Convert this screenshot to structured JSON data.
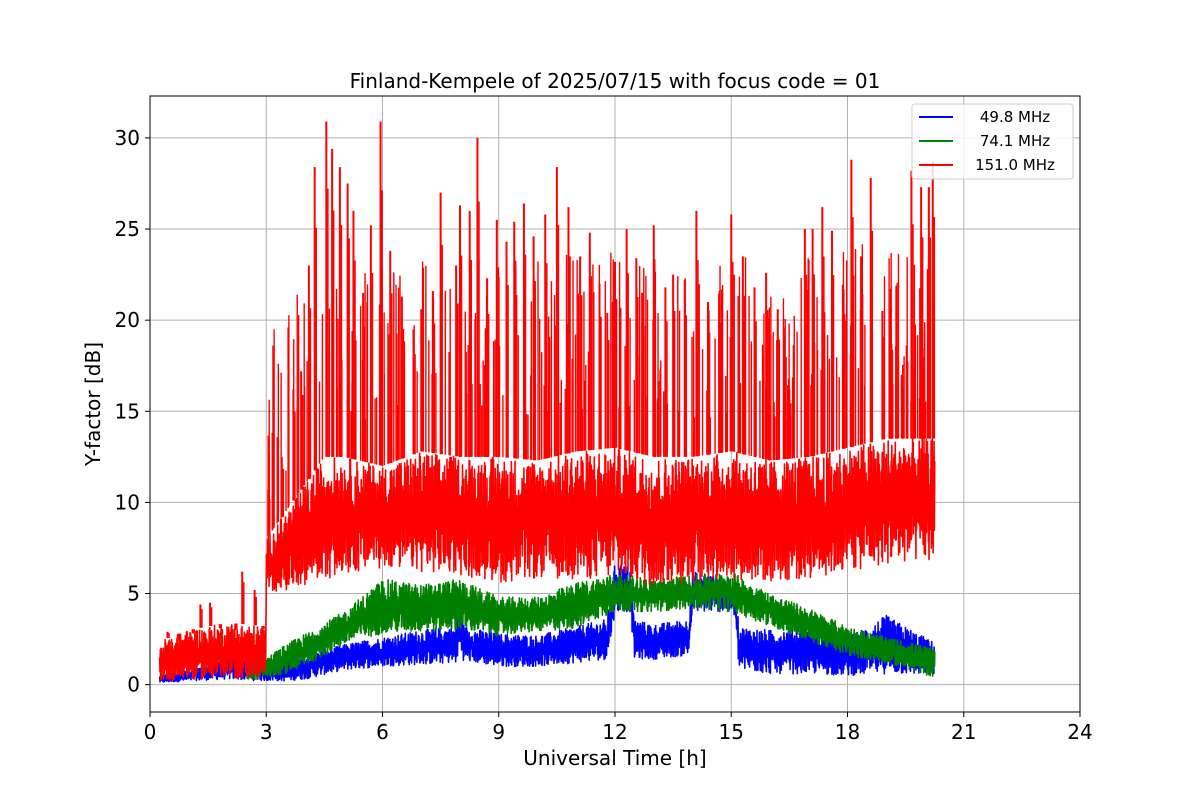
{
  "chart_data": {
    "type": "line",
    "title": "Finland-Kempele of 2025/07/15 with focus code = 01",
    "xlabel": "Universal Time [h]",
    "ylabel": "Y-factor [dB]",
    "xlim": [
      0,
      24
    ],
    "ylim": [
      -1.5,
      32.3
    ],
    "xticks": [
      0,
      3,
      6,
      9,
      12,
      15,
      18,
      21,
      24
    ],
    "yticks": [
      0,
      5,
      10,
      15,
      20,
      25,
      30
    ],
    "grid": true,
    "legend_position": "top-right",
    "series": [
      {
        "name": "49.8 MHz",
        "color": "#0000ff",
        "x": [
          0.25,
          1.0,
          2.0,
          3.0,
          3.5,
          4.0,
          5.0,
          6.0,
          7.0,
          7.9,
          8.0,
          8.1,
          9.0,
          10.0,
          11.0,
          11.8,
          12.0,
          12.4,
          12.5,
          13.0,
          13.9,
          14.0,
          15.0,
          15.1,
          15.2,
          16.0,
          17.0,
          18.0,
          19.0,
          20.25
        ],
        "low": [
          0.1,
          0.2,
          0.3,
          0.2,
          0.2,
          0.3,
          0.8,
          1.0,
          1.1,
          1.2,
          1.6,
          1.3,
          1.0,
          1.0,
          1.2,
          1.4,
          4.0,
          4.0,
          1.4,
          1.4,
          1.6,
          4.0,
          4.0,
          3.6,
          0.8,
          0.6,
          0.6,
          0.5,
          0.6,
          0.5
        ],
        "high": [
          0.5,
          0.8,
          1.5,
          1.5,
          1.2,
          1.6,
          2.2,
          2.6,
          3.0,
          3.2,
          6.0,
          3.2,
          2.8,
          2.7,
          3.2,
          3.6,
          6.7,
          6.5,
          3.6,
          3.3,
          3.6,
          6.2,
          5.8,
          5.2,
          3.2,
          3.0,
          3.2,
          2.6,
          3.8,
          2.3
        ]
      },
      {
        "name": "74.1 MHz",
        "color": "#008000",
        "x": [
          2.5,
          3.0,
          3.5,
          4.0,
          5.0,
          6.0,
          7.0,
          8.0,
          9.0,
          10.0,
          11.0,
          12.0,
          13.0,
          14.0,
          15.0,
          16.0,
          17.0,
          18.0,
          19.0,
          20.25
        ],
        "low": [
          0.2,
          0.4,
          0.6,
          1.0,
          2.2,
          2.8,
          2.9,
          3.0,
          2.7,
          2.9,
          3.1,
          4.0,
          4.0,
          4.2,
          4.0,
          3.2,
          2.4,
          1.6,
          1.2,
          0.4
        ],
        "high": [
          1.0,
          1.5,
          2.2,
          2.8,
          4.0,
          5.8,
          5.5,
          5.8,
          4.8,
          4.8,
          5.6,
          6.1,
          5.8,
          6.0,
          6.2,
          5.0,
          4.2,
          3.2,
          2.6,
          2.0
        ]
      },
      {
        "name": "151.0 MHz",
        "color": "#ff0000",
        "x": [
          0.25,
          1.0,
          2.0,
          2.99,
          3.0,
          3.5,
          4.0,
          4.5,
          5.0,
          6.0,
          7.0,
          8.0,
          9.0,
          10.0,
          11.0,
          12.0,
          13.0,
          14.0,
          15.0,
          16.0,
          17.0,
          18.0,
          19.0,
          20.25
        ],
        "low": [
          0.2,
          0.3,
          0.3,
          0.4,
          5.0,
          5.2,
          5.5,
          5.8,
          6.0,
          6.4,
          6.2,
          6.0,
          5.6,
          5.8,
          5.8,
          5.8,
          5.4,
          5.6,
          5.8,
          5.6,
          5.8,
          6.2,
          6.6,
          6.8
        ],
        "high": [
          2.4,
          3.0,
          3.4,
          3.2,
          8.0,
          9.5,
          11.0,
          12.5,
          12.5,
          12.0,
          12.8,
          12.5,
          12.5,
          12.3,
          12.8,
          13.0,
          12.5,
          12.5,
          12.8,
          12.3,
          12.5,
          13.0,
          13.5,
          13.5
        ],
        "spikes": [
          [
            0.45,
            2.9
          ],
          [
            0.75,
            2.4
          ],
          [
            1.1,
            2.8
          ],
          [
            1.3,
            4.4
          ],
          [
            1.55,
            4.5
          ],
          [
            1.8,
            3.1
          ],
          [
            2.2,
            3.0
          ],
          [
            2.38,
            6.2
          ],
          [
            2.7,
            5.2
          ],
          [
            2.9,
            3.0
          ],
          [
            3.05,
            10.7
          ],
          [
            3.4,
            12.5
          ],
          [
            3.7,
            16.2
          ],
          [
            3.9,
            17.2
          ],
          [
            4.1,
            23.0
          ],
          [
            4.25,
            28.4
          ],
          [
            4.55,
            30.9
          ],
          [
            4.7,
            29.4
          ],
          [
            4.9,
            28.4
          ],
          [
            5.1,
            27.5
          ],
          [
            5.25,
            26.0
          ],
          [
            5.5,
            21.5
          ],
          [
            5.7,
            25.2
          ],
          [
            5.95,
            30.9
          ],
          [
            6.2,
            23.8
          ],
          [
            6.5,
            21.3
          ],
          [
            6.8,
            19.5
          ],
          [
            7.0,
            20.6
          ],
          [
            7.3,
            21.6
          ],
          [
            7.5,
            27.0
          ],
          [
            7.9,
            23.0
          ],
          [
            8.0,
            26.3
          ],
          [
            8.25,
            26.0
          ],
          [
            8.45,
            30.0
          ],
          [
            8.7,
            22.3
          ],
          [
            8.95,
            25.5
          ],
          [
            9.2,
            24.3
          ],
          [
            9.4,
            25.4
          ],
          [
            9.65,
            26.4
          ],
          [
            9.9,
            24.6
          ],
          [
            10.2,
            25.8
          ],
          [
            10.5,
            28.4
          ],
          [
            10.8,
            26.2
          ],
          [
            11.1,
            23.5
          ],
          [
            11.35,
            24.8
          ],
          [
            11.6,
            22.0
          ],
          [
            11.8,
            20.4
          ],
          [
            12.0,
            23.2
          ],
          [
            12.3,
            25.0
          ],
          [
            12.55,
            23.4
          ],
          [
            12.7,
            21.5
          ],
          [
            13.0,
            25.2
          ],
          [
            13.3,
            21.8
          ],
          [
            13.5,
            22.5
          ],
          [
            13.8,
            22.2
          ],
          [
            14.1,
            26.0
          ],
          [
            14.4,
            21.0
          ],
          [
            14.7,
            21.6
          ],
          [
            15.0,
            25.8
          ],
          [
            15.3,
            23.5
          ],
          [
            15.6,
            21.8
          ],
          [
            15.9,
            22.6
          ],
          [
            16.2,
            20.6
          ],
          [
            16.5,
            16.2
          ],
          [
            16.9,
            25.0
          ],
          [
            17.1,
            25.0
          ],
          [
            17.35,
            26.2
          ],
          [
            17.6,
            24.9
          ],
          [
            17.9,
            21.7
          ],
          [
            18.1,
            28.8
          ],
          [
            18.35,
            23.5
          ],
          [
            18.6,
            27.8
          ],
          [
            18.9,
            20.5
          ],
          [
            19.1,
            20.0
          ],
          [
            19.4,
            17.0
          ],
          [
            19.65,
            28.2
          ],
          [
            19.9,
            27.3
          ],
          [
            20.1,
            27.3
          ],
          [
            20.2,
            28.7
          ]
        ]
      }
    ]
  }
}
